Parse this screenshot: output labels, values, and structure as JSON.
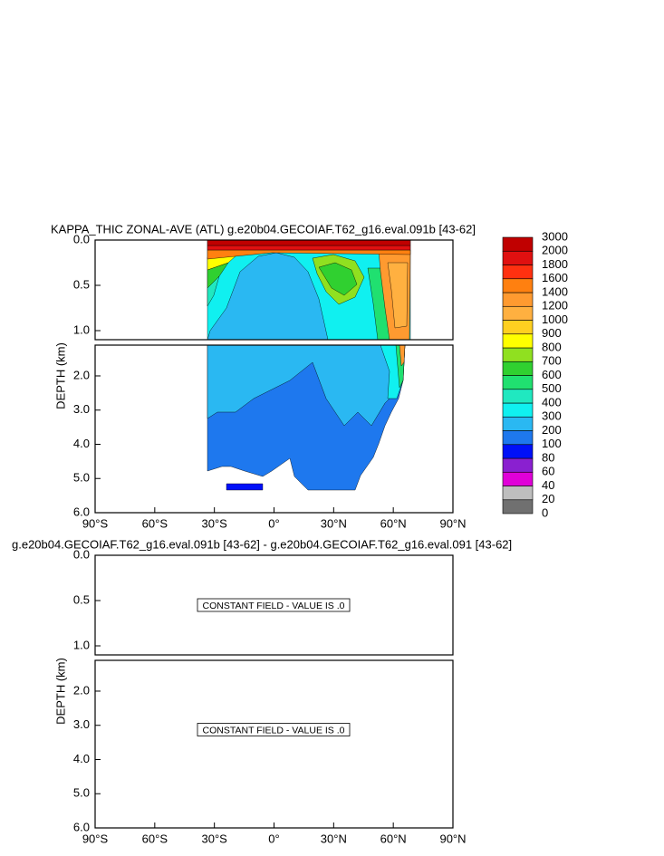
{
  "chart_data": [
    {
      "type": "contour",
      "title": "KAPPA_THIC ZONAL-AVE (ATL) g.e20b04.GECOIAF.T62_g16.eval.091b [43-62]",
      "y_label": "DEPTH (km)",
      "xlim": [
        -90,
        90
      ],
      "xticks": [
        {
          "value": -90,
          "label": "90°S"
        },
        {
          "value": -60,
          "label": "60°S"
        },
        {
          "value": -30,
          "label": "30°S"
        },
        {
          "value": 0,
          "label": "0°"
        },
        {
          "value": 30,
          "label": "30°N"
        },
        {
          "value": 60,
          "label": "60°N"
        },
        {
          "value": 90,
          "label": "90°N"
        }
      ],
      "panels": [
        {
          "ylim": [
            0,
            1.1
          ],
          "yticks": [
            {
              "value": 0,
              "label": "0.0"
            },
            0.5,
            {
              "value": 1,
              "label": "1.0"
            }
          ]
        },
        {
          "ylim": [
            1.1,
            6
          ],
          "yticks": [
            {
              "value": 2,
              "label": "2.0"
            },
            {
              "value": 3,
              "label": "3.0"
            },
            {
              "value": 4,
              "label": "4.0"
            },
            {
              "value": 5,
              "label": "5.0"
            },
            {
              "value": 6,
              "label": "6.0"
            }
          ]
        }
      ],
      "levels": [
        0,
        20,
        40,
        60,
        80,
        100,
        200,
        300,
        400,
        500,
        600,
        700,
        800,
        900,
        1000,
        1200,
        1400,
        1600,
        1800,
        2000,
        3000
      ],
      "colors": [
        "#707070",
        "#bebebe",
        "#e000d8",
        "#8a20d0",
        "#0010f8",
        "#1e78ee",
        "#2ab8f2",
        "#10f0f0",
        "#20e8c0",
        "#20e070",
        "#30d030",
        "#90e020",
        "#ffff00",
        "#ffd020",
        "#ffb040",
        "#ff9a30",
        "#ff8010",
        "#ff3010",
        "#e01010",
        "#c00000"
      ]
    },
    {
      "type": "contour",
      "title": "g.e20b04.GECOIAF.T62_g16.eval.091b [43-62] - g.e20b04.GECOIAF.T62_g16.eval.091 [43-62]",
      "y_label": "DEPTH (km)",
      "xlim": [
        -90,
        90
      ],
      "xticks": [
        {
          "value": -90,
          "label": "90°S"
        },
        {
          "value": -60,
          "label": "60°S"
        },
        {
          "value": -30,
          "label": "30°S"
        },
        {
          "value": 0,
          "label": "0°"
        },
        {
          "value": 30,
          "label": "30°N"
        },
        {
          "value": 60,
          "label": "60°N"
        },
        {
          "value": 90,
          "label": "90°N"
        }
      ],
      "panels": [
        {
          "ylim": [
            0,
            1.1
          ],
          "yticks": [
            {
              "value": 0,
              "label": "0.0"
            },
            0.5,
            {
              "value": 1,
              "label": "1.0"
            }
          ],
          "annotation": "CONSTANT FIELD - VALUE IS .0"
        },
        {
          "ylim": [
            1.1,
            6
          ],
          "yticks": [
            {
              "value": 2,
              "label": "2.0"
            },
            {
              "value": 3,
              "label": "3.0"
            },
            {
              "value": 4,
              "label": "4.0"
            },
            {
              "value": 5,
              "label": "5.0"
            },
            {
              "value": 6,
              "label": "6.0"
            }
          ],
          "annotation": "CONSTANT FIELD - VALUE IS .0"
        }
      ]
    }
  ]
}
